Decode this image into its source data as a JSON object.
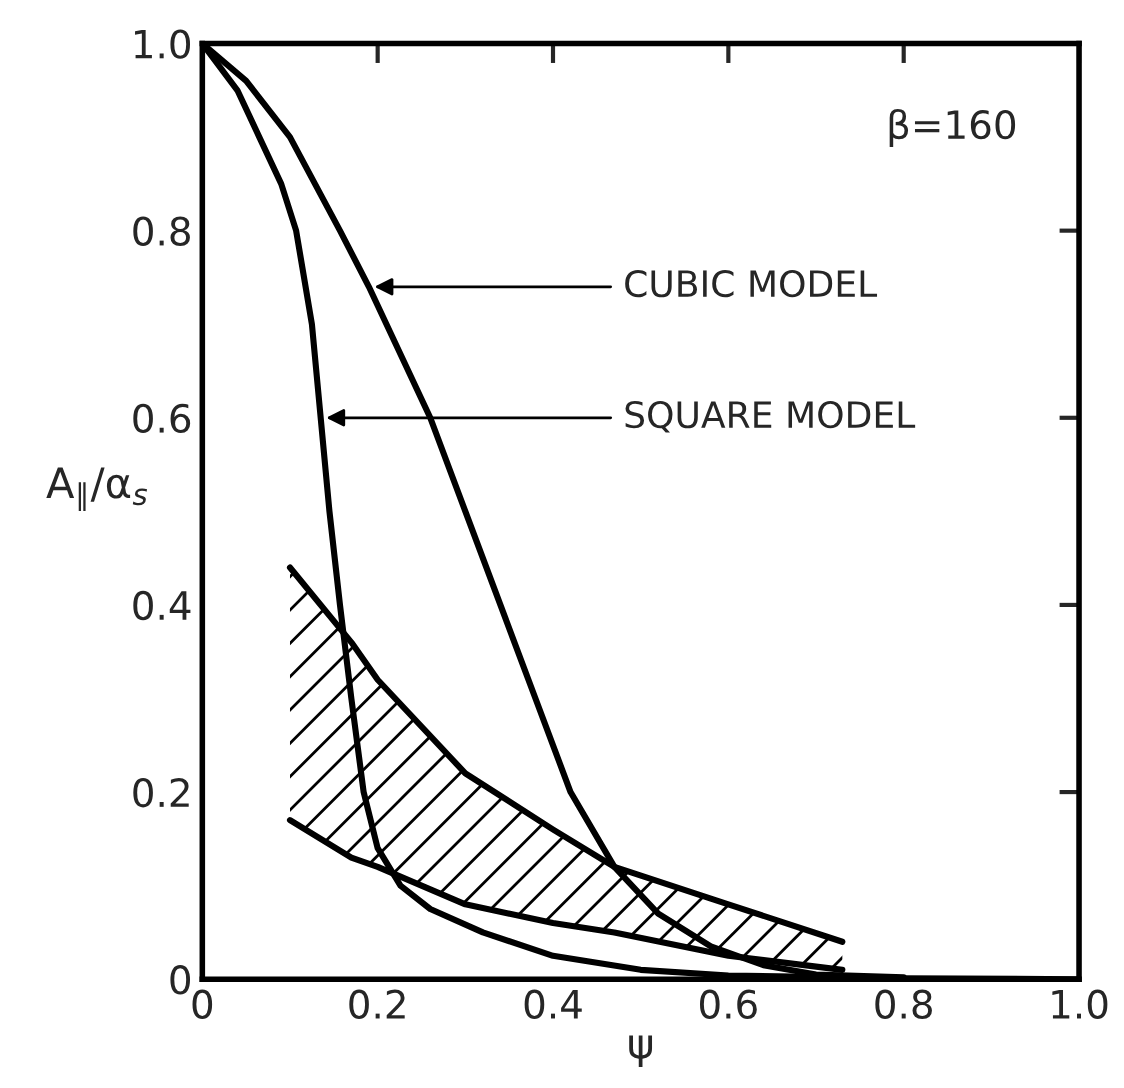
{
  "chart_data": {
    "type": "line",
    "xlabel": "ψ",
    "ylabel": "A$_{∥}$/α$_{s}$",
    "xlim": [
      0,
      1.0
    ],
    "ylim": [
      0,
      1.0
    ],
    "xticks": [
      0,
      {
        "value": 0.2,
        "label": "0.2"
      },
      {
        "value": 0.4,
        "label": "0.4"
      },
      {
        "value": 0.6,
        "label": "0.6"
      },
      {
        "value": 0.8,
        "label": "0.8"
      },
      {
        "value": 1.0,
        "label": "1.0"
      }
    ],
    "yticks": [
      0,
      {
        "value": 0.2,
        "label": "0.2"
      },
      {
        "value": 0.4,
        "label": "0.4"
      },
      {
        "value": 0.6,
        "label": "0.6"
      },
      {
        "value": 0.8,
        "label": "0.8"
      },
      {
        "value": 1.0,
        "label": "1.0"
      }
    ],
    "grid": false,
    "legend": false,
    "marker": "none",
    "line_style": "solid",
    "series": [
      {
        "color": "#000000",
        "x": [
          0,
          0.05,
          0.1,
          0.157,
          0.19,
          0.26,
          0.3,
          0.34,
          0.38,
          0.42,
          0.47,
          0.52,
          0.58,
          0.64,
          0.7,
          0.8
        ],
        "values": [
          1.0,
          0.96,
          0.9,
          0.8,
          0.74,
          0.6,
          0.5,
          0.4,
          0.3,
          0.2,
          0.12,
          0.07,
          0.035,
          0.015,
          0.005,
          0.002
        ]
      },
      {
        "color": "#000000",
        "x": [
          0,
          0.04,
          0.065,
          0.09,
          0.107,
          0.125,
          0.135,
          0.145,
          0.157,
          0.17,
          0.184,
          0.2,
          0.226,
          0.26,
          0.32,
          0.4,
          0.5,
          0.6,
          0.8,
          1.0
        ],
        "values": [
          1.0,
          0.95,
          0.9,
          0.85,
          0.8,
          0.7,
          0.6,
          0.5,
          0.4,
          0.3,
          0.2,
          0.14,
          0.1,
          0.075,
          0.05,
          0.025,
          0.01,
          0.004,
          0.001,
          0.0
        ]
      },
      {
        "type": "line",
        "color": "#000000",
        "x": [
          0.1,
          0.17,
          0.2,
          0.3,
          0.4,
          0.47,
          0.6,
          0.73
        ],
        "values": [
          0.44,
          0.36,
          0.32,
          0.22,
          0.16,
          0.12,
          0.08,
          0.04
        ]
      },
      {
        "type": "line",
        "color": "#000000",
        "x": [
          0.1,
          0.17,
          0.2,
          0.3,
          0.4,
          0.47,
          0.6,
          0.73
        ],
        "values": [
          0.17,
          0.13,
          0.12,
          0.08,
          0.06,
          0.05,
          0.025,
          0.01
        ]
      }
    ],
    "annotations": [
      {
        "text": "CUBIC MODEL",
        "x": 0.19,
        "y": 0.74
      },
      {
        "text": "SQUARE MODEL",
        "x": 0.135,
        "y": 0.6
      },
      "β=160"
    ]
  }
}
